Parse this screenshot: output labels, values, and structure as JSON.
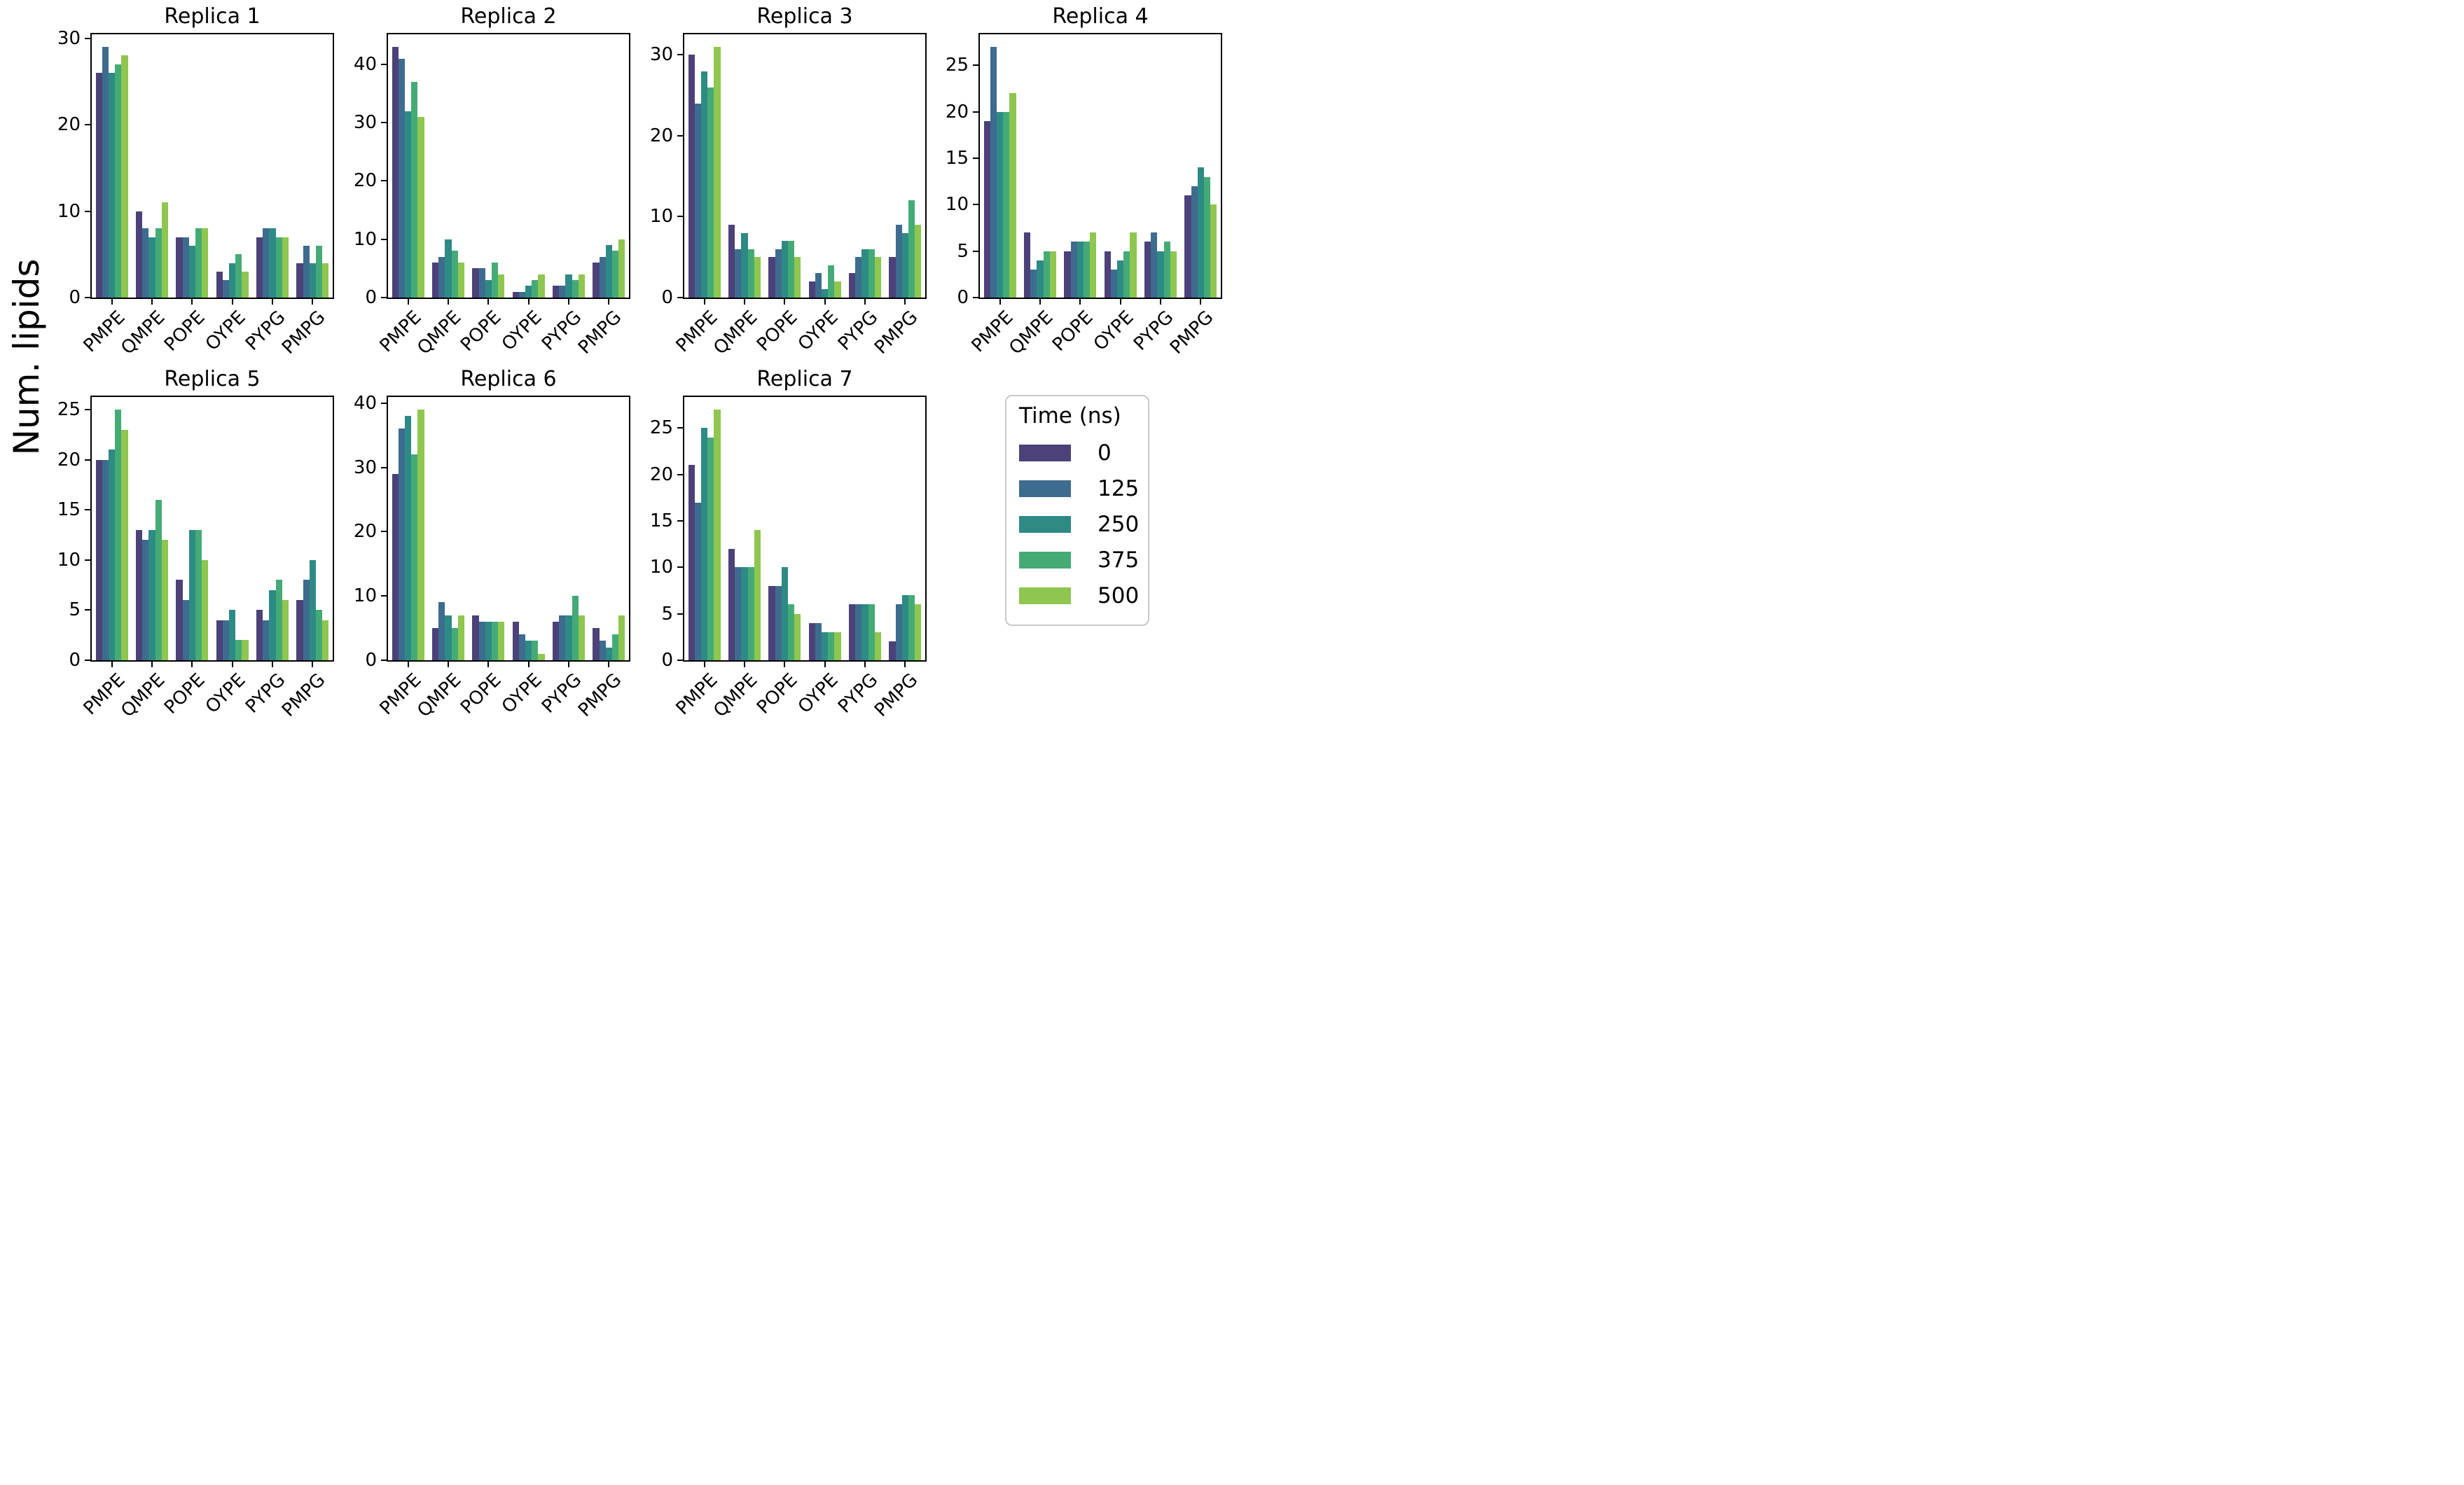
{
  "figure": {
    "ylabel": "Num. lipids"
  },
  "legend": {
    "title": "Time (ns)",
    "entries": [
      {
        "label": "0",
        "color": "#4c4179"
      },
      {
        "label": "125",
        "color": "#3d6c8e"
      },
      {
        "label": "250",
        "color": "#2e8a85"
      },
      {
        "label": "375",
        "color": "#44ab77"
      },
      {
        "label": "500",
        "color": "#8ec64f"
      }
    ]
  },
  "chart_data": {
    "type": "bar",
    "categories": [
      "PMPE",
      "QMPE",
      "POPE",
      "OYPE",
      "PYPG",
      "PMPG"
    ],
    "series_labels": [
      "0",
      "125",
      "250",
      "375",
      "500"
    ],
    "series_colors": [
      "#4c4179",
      "#3d6c8e",
      "#2e8a85",
      "#44ab77",
      "#8ec64f"
    ],
    "ylabel": "Num. lipids",
    "grid": false,
    "legend_position": "bottom-right-cell",
    "subplots": [
      {
        "title": "Replica 1",
        "ylim": [
          0,
          30.45
        ],
        "yticks": [
          0,
          10,
          20,
          30
        ],
        "series": [
          {
            "name": "0",
            "values": [
              26,
              10,
              7,
              3,
              7,
              4
            ]
          },
          {
            "name": "125",
            "values": [
              29,
              8,
              7,
              2,
              8,
              6
            ]
          },
          {
            "name": "250",
            "values": [
              26,
              7,
              6,
              4,
              8,
              4
            ]
          },
          {
            "name": "375",
            "values": [
              27,
              8,
              8,
              5,
              7,
              6
            ]
          },
          {
            "name": "500",
            "values": [
              28,
              11,
              8,
              3,
              7,
              4
            ]
          }
        ]
      },
      {
        "title": "Replica 2",
        "ylim": [
          0,
          45.15
        ],
        "yticks": [
          0,
          10,
          20,
          30,
          40
        ],
        "series": [
          {
            "name": "0",
            "values": [
              43,
              6,
              5,
              1,
              2,
              6
            ]
          },
          {
            "name": "125",
            "values": [
              41,
              7,
              5,
              1,
              2,
              7
            ]
          },
          {
            "name": "250",
            "values": [
              32,
              10,
              3,
              2,
              4,
              9
            ]
          },
          {
            "name": "375",
            "values": [
              37,
              8,
              6,
              3,
              3,
              8
            ]
          },
          {
            "name": "500",
            "values": [
              31,
              6,
              4,
              4,
              4,
              10
            ]
          }
        ]
      },
      {
        "title": "Replica 3",
        "ylim": [
          0,
          32.55
        ],
        "yticks": [
          0,
          10,
          20,
          30
        ],
        "series": [
          {
            "name": "0",
            "values": [
              30,
              9,
              5,
              2,
              3,
              5
            ]
          },
          {
            "name": "125",
            "values": [
              24,
              6,
              6,
              3,
              5,
              9
            ]
          },
          {
            "name": "250",
            "values": [
              28,
              8,
              7,
              1,
              6,
              8
            ]
          },
          {
            "name": "375",
            "values": [
              26,
              6,
              7,
              4,
              6,
              12
            ]
          },
          {
            "name": "500",
            "values": [
              31,
              5,
              5,
              2,
              5,
              9
            ]
          }
        ]
      },
      {
        "title": "Replica 4",
        "ylim": [
          0,
          28.35
        ],
        "yticks": [
          0,
          5,
          10,
          15,
          20,
          25
        ],
        "series": [
          {
            "name": "0",
            "values": [
              19,
              7,
              5,
              5,
              6,
              11
            ]
          },
          {
            "name": "125",
            "values": [
              27,
              3,
              6,
              3,
              7,
              12
            ]
          },
          {
            "name": "250",
            "values": [
              20,
              4,
              6,
              4,
              5,
              14
            ]
          },
          {
            "name": "375",
            "values": [
              20,
              5,
              6,
              5,
              6,
              13
            ]
          },
          {
            "name": "500",
            "values": [
              22,
              5,
              7,
              7,
              5,
              10
            ]
          }
        ]
      },
      {
        "title": "Replica 5",
        "ylim": [
          0,
          26.25
        ],
        "yticks": [
          0,
          5,
          10,
          15,
          20,
          25
        ],
        "series": [
          {
            "name": "0",
            "values": [
              20,
              13,
              8,
              4,
              5,
              6
            ]
          },
          {
            "name": "125",
            "values": [
              20,
              12,
              6,
              4,
              4,
              8
            ]
          },
          {
            "name": "250",
            "values": [
              21,
              13,
              13,
              5,
              7,
              10
            ]
          },
          {
            "name": "375",
            "values": [
              25,
              16,
              13,
              2,
              8,
              5
            ]
          },
          {
            "name": "500",
            "values": [
              23,
              12,
              10,
              2,
              6,
              4
            ]
          }
        ]
      },
      {
        "title": "Replica 6",
        "ylim": [
          0,
          40.95
        ],
        "yticks": [
          0,
          10,
          20,
          30,
          40
        ],
        "series": [
          {
            "name": "0",
            "values": [
              29,
              5,
              7,
              6,
              6,
              5
            ]
          },
          {
            "name": "125",
            "values": [
              36,
              9,
              6,
              4,
              7,
              3
            ]
          },
          {
            "name": "250",
            "values": [
              38,
              7,
              6,
              3,
              7,
              2
            ]
          },
          {
            "name": "375",
            "values": [
              32,
              5,
              6,
              3,
              10,
              4
            ]
          },
          {
            "name": "500",
            "values": [
              39,
              7,
              6,
              1,
              7,
              7
            ]
          }
        ]
      },
      {
        "title": "Replica 7",
        "ylim": [
          0,
          28.35
        ],
        "yticks": [
          0,
          5,
          10,
          15,
          20,
          25
        ],
        "series": [
          {
            "name": "0",
            "values": [
              21,
              12,
              8,
              4,
              6,
              2
            ]
          },
          {
            "name": "125",
            "values": [
              17,
              10,
              8,
              4,
              6,
              6
            ]
          },
          {
            "name": "250",
            "values": [
              25,
              10,
              10,
              3,
              6,
              7
            ]
          },
          {
            "name": "375",
            "values": [
              24,
              10,
              6,
              3,
              6,
              7
            ]
          },
          {
            "name": "500",
            "values": [
              27,
              14,
              5,
              3,
              3,
              6
            ]
          }
        ]
      }
    ]
  }
}
